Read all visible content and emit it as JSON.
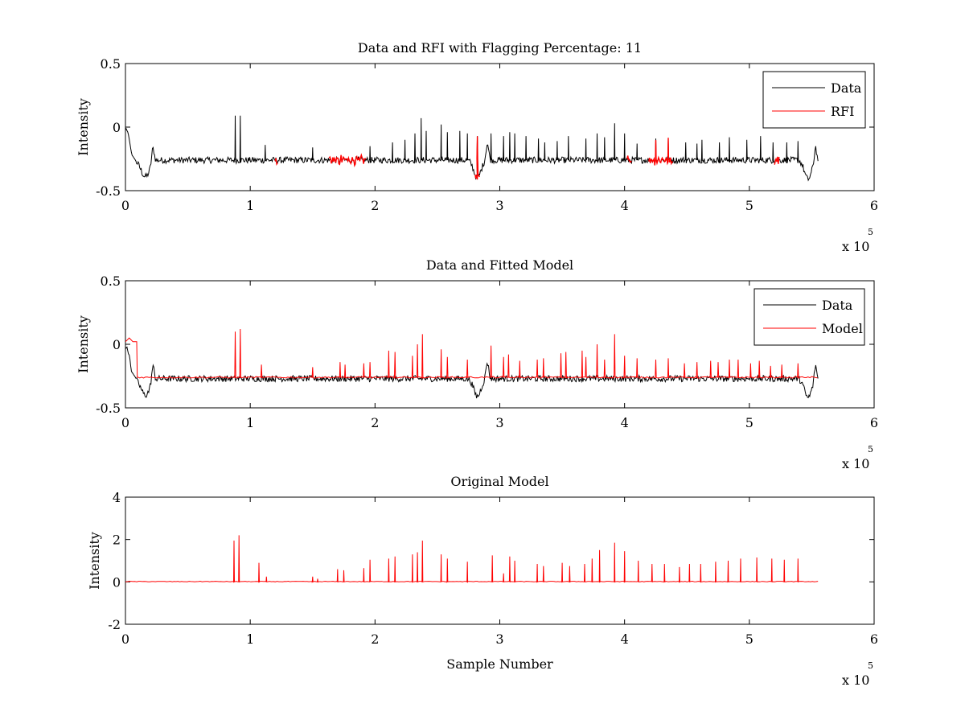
{
  "chart_data": [
    {
      "type": "line",
      "title": "Data and RFI with Flagging Percentage: 11",
      "xlabel": "",
      "ylabel": "Intensity",
      "xlim": [
        0,
        600000
      ],
      "ylim": [
        -0.5,
        0.5
      ],
      "xticks": [
        0,
        100000,
        200000,
        300000,
        400000,
        500000,
        600000
      ],
      "xtick_labels": [
        "0",
        "1",
        "2",
        "3",
        "4",
        "5",
        "6"
      ],
      "yticks": [
        -0.5,
        0,
        0.5
      ],
      "ytick_labels": [
        "-0.5",
        "0",
        "0.5"
      ],
      "x_multiplier": "x 10",
      "x_multiplier_exp": "5",
      "grid": false,
      "legend_position": "top-right",
      "series": [
        {
          "name": "Data",
          "color": "#000000",
          "baseline": -0.26,
          "x_end": 555000,
          "spikes": [
            [
              88000,
              0.09
            ],
            [
              92000,
              0.09
            ],
            [
              112000,
              -0.14
            ],
            [
              150000,
              -0.16
            ],
            [
              196000,
              -0.15
            ],
            [
              214000,
              -0.12
            ],
            [
              224000,
              -0.1
            ],
            [
              232000,
              -0.05
            ],
            [
              237000,
              0.07
            ],
            [
              241000,
              -0.03
            ],
            [
              253000,
              0.02
            ],
            [
              258000,
              -0.04
            ],
            [
              268000,
              -0.03
            ],
            [
              274000,
              -0.05
            ],
            [
              282000,
              -0.07
            ],
            [
              293000,
              -0.05
            ],
            [
              303000,
              -0.07
            ],
            [
              308000,
              -0.04
            ],
            [
              312000,
              -0.05
            ],
            [
              321000,
              -0.07
            ],
            [
              331000,
              -0.09
            ],
            [
              336000,
              -0.12
            ],
            [
              346000,
              -0.11
            ],
            [
              355000,
              -0.07
            ],
            [
              369000,
              -0.09
            ],
            [
              378000,
              -0.05
            ],
            [
              384000,
              -0.08
            ],
            [
              392000,
              0.03
            ],
            [
              400000,
              -0.05
            ],
            [
              410000,
              -0.13
            ],
            [
              425000,
              -0.09
            ],
            [
              435000,
              -0.1
            ],
            [
              449000,
              -0.12
            ],
            [
              458000,
              -0.13
            ],
            [
              462000,
              -0.1
            ],
            [
              476000,
              -0.12
            ],
            [
              484000,
              -0.08
            ],
            [
              498000,
              -0.1
            ],
            [
              509000,
              -0.07
            ],
            [
              519000,
              -0.12
            ],
            [
              530000,
              -0.12
            ],
            [
              539000,
              -0.11
            ]
          ]
        },
        {
          "name": "RFI",
          "color": "#ff0000",
          "flag_ranges": [
            [
              163000,
              193000
            ],
            [
              419000,
              439000
            ],
            [
              402000,
              406000
            ],
            [
              280000,
              284000
            ],
            [
              520000,
              524000
            ],
            [
              120000,
              122000
            ]
          ]
        }
      ]
    },
    {
      "type": "line",
      "title": "Data and Fitted Model",
      "xlabel": "",
      "ylabel": "Intensity",
      "xlim": [
        0,
        600000
      ],
      "ylim": [
        -0.5,
        0.5
      ],
      "xticks": [
        0,
        100000,
        200000,
        300000,
        400000,
        500000,
        600000
      ],
      "xtick_labels": [
        "0",
        "1",
        "2",
        "3",
        "4",
        "5",
        "6"
      ],
      "yticks": [
        -0.5,
        0,
        0.5
      ],
      "ytick_labels": [
        "-0.5",
        "0",
        "0.5"
      ],
      "x_multiplier": "x 10",
      "x_multiplier_exp": "5",
      "grid": false,
      "legend_position": "top-right",
      "series": [
        {
          "name": "Data",
          "color": "#000000",
          "baseline": -0.27,
          "x_end": 555000
        },
        {
          "name": "Model",
          "color": "#ff0000",
          "baseline": -0.26,
          "x_end": 555000,
          "spikes": [
            [
              88000,
              0.1
            ],
            [
              92000,
              0.12
            ],
            [
              109000,
              -0.16
            ],
            [
              150000,
              -0.18
            ],
            [
              172000,
              -0.14
            ],
            [
              176000,
              -0.16
            ],
            [
              191000,
              -0.15
            ],
            [
              196000,
              -0.14
            ],
            [
              211000,
              -0.05
            ],
            [
              216000,
              -0.06
            ],
            [
              230000,
              -0.09
            ],
            [
              234000,
              0.0
            ],
            [
              238000,
              0.08
            ],
            [
              253000,
              -0.04
            ],
            [
              258000,
              -0.1
            ],
            [
              274000,
              -0.12
            ],
            [
              293000,
              -0.01
            ],
            [
              303000,
              -0.1
            ],
            [
              307000,
              -0.08
            ],
            [
              316000,
              -0.13
            ],
            [
              330000,
              -0.12
            ],
            [
              335000,
              -0.11
            ],
            [
              349000,
              -0.07
            ],
            [
              353000,
              -0.06
            ],
            [
              366000,
              -0.05
            ],
            [
              369000,
              -0.1
            ],
            [
              378000,
              0.0
            ],
            [
              384000,
              -0.12
            ],
            [
              392000,
              0.08
            ],
            [
              400000,
              -0.09
            ],
            [
              410000,
              -0.11
            ],
            [
              425000,
              -0.12
            ],
            [
              435000,
              -0.11
            ],
            [
              448000,
              -0.15
            ],
            [
              458000,
              -0.14
            ],
            [
              469000,
              -0.13
            ],
            [
              475000,
              -0.14
            ],
            [
              484000,
              -0.12
            ],
            [
              491000,
              -0.12
            ],
            [
              501000,
              -0.15
            ],
            [
              508000,
              -0.13
            ],
            [
              517000,
              -0.17
            ],
            [
              526000,
              -0.16
            ],
            [
              539000,
              -0.15
            ]
          ]
        }
      ]
    },
    {
      "type": "line",
      "title": "Original Model",
      "xlabel": "Sample Number",
      "ylabel": "Intensity",
      "xlim": [
        0,
        600000
      ],
      "ylim": [
        -2,
        4
      ],
      "xticks": [
        0,
        100000,
        200000,
        300000,
        400000,
        500000,
        600000
      ],
      "xtick_labels": [
        "0",
        "1",
        "2",
        "3",
        "4",
        "5",
        "6"
      ],
      "yticks": [
        -2,
        0,
        2,
        4
      ],
      "ytick_labels": [
        "-2",
        "0",
        "2",
        "4"
      ],
      "x_multiplier": "x 10",
      "x_multiplier_exp": "5",
      "grid": false,
      "series": [
        {
          "name": "",
          "color": "#ff0000",
          "baseline": 0.0,
          "x_end": 555000,
          "spikes": [
            [
              87000,
              1.95
            ],
            [
              91000,
              2.2
            ],
            [
              107000,
              0.9
            ],
            [
              113000,
              0.25
            ],
            [
              150000,
              0.25
            ],
            [
              154000,
              0.15
            ],
            [
              170000,
              0.6
            ],
            [
              175000,
              0.55
            ],
            [
              191000,
              0.65
            ],
            [
              196000,
              1.05
            ],
            [
              211000,
              1.1
            ],
            [
              216000,
              1.2
            ],
            [
              230000,
              1.3
            ],
            [
              234000,
              1.4
            ],
            [
              238000,
              1.95
            ],
            [
              253000,
              1.3
            ],
            [
              258000,
              1.1
            ],
            [
              274000,
              0.95
            ],
            [
              294000,
              1.25
            ],
            [
              303000,
              0.4
            ],
            [
              308000,
              1.2
            ],
            [
              312000,
              1.0
            ],
            [
              330000,
              0.85
            ],
            [
              335000,
              0.75
            ],
            [
              350000,
              0.9
            ],
            [
              356000,
              0.75
            ],
            [
              368000,
              0.85
            ],
            [
              374000,
              1.1
            ],
            [
              380000,
              1.5
            ],
            [
              392000,
              1.85
            ],
            [
              400000,
              1.45
            ],
            [
              411000,
              1.0
            ],
            [
              422000,
              0.85
            ],
            [
              432000,
              0.85
            ],
            [
              444000,
              0.7
            ],
            [
              452000,
              0.85
            ],
            [
              461000,
              0.85
            ],
            [
              473000,
              0.95
            ],
            [
              483000,
              1.0
            ],
            [
              493000,
              1.1
            ],
            [
              506000,
              1.15
            ],
            [
              518000,
              1.1
            ],
            [
              528000,
              1.05
            ],
            [
              539000,
              1.1
            ]
          ]
        }
      ]
    }
  ]
}
